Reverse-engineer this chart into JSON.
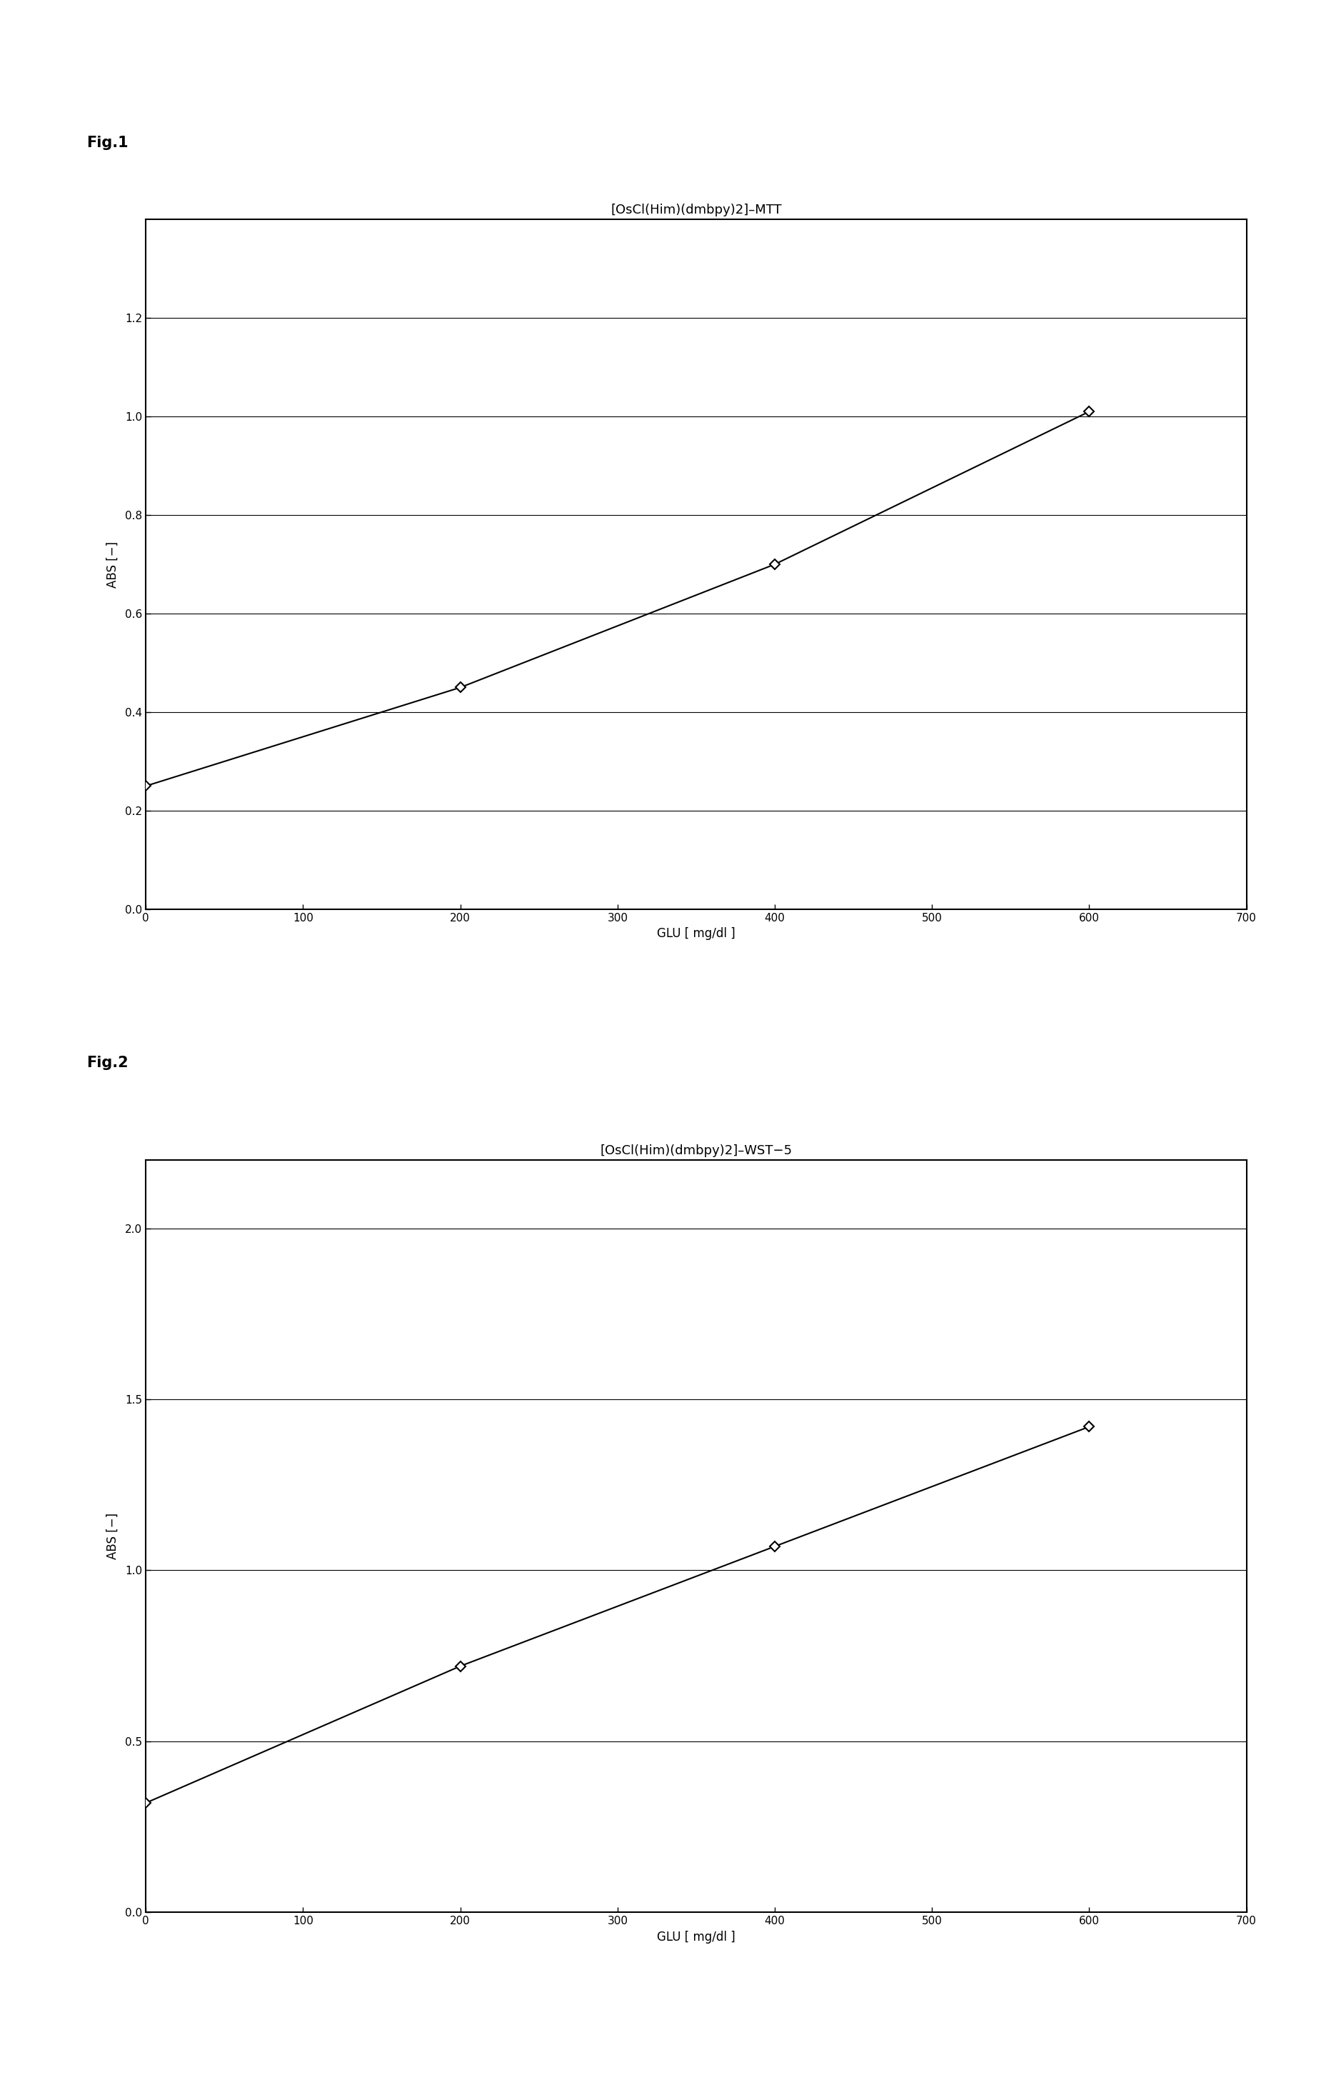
{
  "fig1": {
    "title": "[OsCl(Him)(dmbpy)2]–MTT",
    "x": [
      0,
      200,
      400,
      600
    ],
    "y": [
      0.25,
      0.45,
      0.7,
      1.01
    ],
    "xlabel": "GLU [ mg/dl ]",
    "ylabel": "ABS [−]",
    "xlim": [
      0,
      700
    ],
    "ylim": [
      0.0,
      1.4
    ],
    "yticks": [
      0.0,
      0.2,
      0.4,
      0.6,
      0.8,
      1.0,
      1.2
    ],
    "xticks": [
      0,
      100,
      200,
      300,
      400,
      500,
      600,
      700
    ],
    "fig_label": "Fig.1"
  },
  "fig2": {
    "title": "[OsCl(Him)(dmbpy)2]–WST−5",
    "x": [
      0,
      200,
      400,
      600
    ],
    "y": [
      0.32,
      0.72,
      1.07,
      1.42
    ],
    "xlabel": "GLU [ mg/dl ]",
    "ylabel": "ABS [−]",
    "xlim": [
      0,
      700
    ],
    "ylim": [
      0.0,
      2.2
    ],
    "yticks": [
      0.0,
      0.5,
      1.0,
      1.5,
      2.0
    ],
    "xticks": [
      0,
      100,
      200,
      300,
      400,
      500,
      600,
      700
    ],
    "fig_label": "Fig.2"
  },
  "background_color": "#ffffff",
  "line_color": "#000000",
  "marker": "D",
  "marker_size": 7,
  "marker_facecolor": "#ffffff",
  "marker_edgecolor": "#000000",
  "grid_color": "#000000",
  "title_fontsize": 13,
  "label_fontsize": 12,
  "tick_fontsize": 11,
  "fig_label_fontsize": 15,
  "fig_label_fontweight": "bold"
}
